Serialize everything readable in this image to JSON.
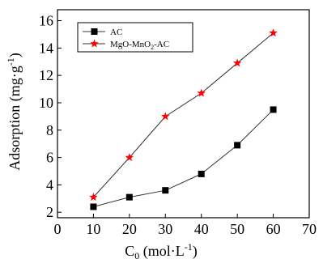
{
  "chart_data": {
    "type": "line",
    "xlabel_main": "C",
    "xlabel_sub": "0",
    "xlabel_unit": " (mol·L",
    "xlabel_sup": "-1",
    "xlabel_close": ")",
    "ylabel_main": "Adsorption (mg·g",
    "ylabel_sup": "-1",
    "ylabel_close": ")",
    "xlim": [
      0,
      70
    ],
    "ylim": [
      1.6,
      16.8
    ],
    "xticks": [
      0,
      10,
      20,
      30,
      40,
      50,
      60,
      70
    ],
    "yticks": [
      2,
      4,
      6,
      8,
      10,
      12,
      14,
      16
    ],
    "x": [
      10,
      20,
      30,
      40,
      50,
      60
    ],
    "series": [
      {
        "name": "AC",
        "marker": "square",
        "marker_color": "#000000",
        "line_color": "#333333",
        "values": [
          2.4,
          3.1,
          3.6,
          4.8,
          6.9,
          9.5
        ]
      },
      {
        "name_main": "MgO-MnO",
        "name_sub": "2",
        "name_rest": "-AC",
        "marker": "star",
        "marker_color": "#ff0000",
        "line_color": "#333333",
        "values": [
          3.1,
          6.0,
          9.0,
          10.7,
          12.9,
          15.1
        ]
      }
    ],
    "grid": false,
    "legend_position": "top-left"
  }
}
